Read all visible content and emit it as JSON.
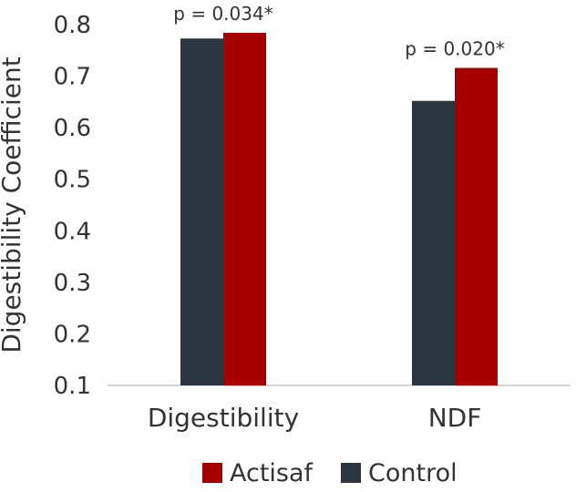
{
  "chart_data": {
    "type": "bar",
    "title": "",
    "xlabel": "",
    "ylabel": "Digestibility Coefficient",
    "categories": [
      "Digestibility",
      "NDF"
    ],
    "series": [
      {
        "name": "Control",
        "color": "#2b3540",
        "values": [
          0.773,
          0.652
        ]
      },
      {
        "name": "Actisaf",
        "color": "#a80000",
        "values": [
          0.784,
          0.716
        ]
      }
    ],
    "annotations": [
      "p = 0.034*",
      "p = 0.020*"
    ],
    "ylim": [
      0.1,
      0.8
    ],
    "yticks": [
      "0.1",
      "0.2",
      "0.3",
      "0.4",
      "0.5",
      "0.6",
      "0.7",
      "0.8"
    ],
    "legend": {
      "position": "bottom",
      "order": [
        "Actisaf",
        "Control"
      ]
    },
    "grid": false
  }
}
